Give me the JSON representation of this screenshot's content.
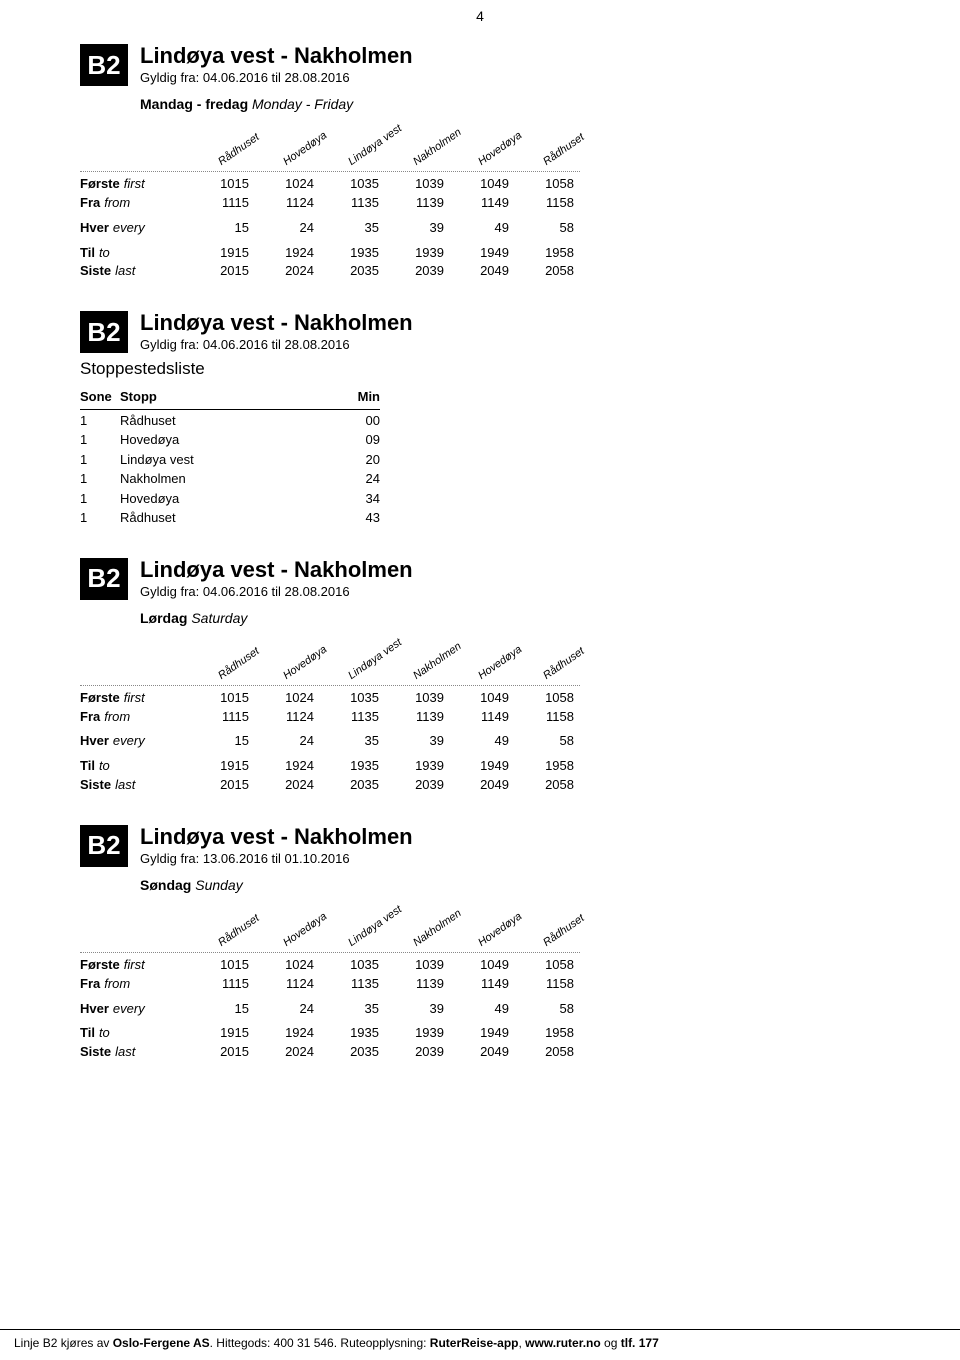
{
  "page_number": "4",
  "route_code": "B2",
  "stops_columns": [
    "Rådhuset",
    "Hovedøya",
    "Lindøya vest",
    "Nakholmen",
    "Hovedøya",
    "Rådhuset"
  ],
  "row_labels": {
    "forste": {
      "b": "Første",
      "i": "first"
    },
    "fra": {
      "b": "Fra",
      "i": "from"
    },
    "hver": {
      "b": "Hver",
      "i": "every"
    },
    "til": {
      "b": "Til",
      "i": "to"
    },
    "siste": {
      "b": "Siste",
      "i": "last"
    }
  },
  "sections": [
    {
      "title": "Lindøya vest - Nakholmen",
      "validity": "Gyldig fra: 04.06.2016 til 28.08.2016",
      "day_bold": "Mandag - fredag",
      "day_italic": "Monday - Friday",
      "has_table": true,
      "rows": {
        "forste": [
          "1015",
          "1024",
          "1035",
          "1039",
          "1049",
          "1058"
        ],
        "fra": [
          "1115",
          "1124",
          "1135",
          "1139",
          "1149",
          "1158"
        ],
        "hver": [
          "15",
          "24",
          "35",
          "39",
          "49",
          "58"
        ],
        "til": [
          "1915",
          "1924",
          "1935",
          "1939",
          "1949",
          "1958"
        ],
        "siste": [
          "2015",
          "2024",
          "2035",
          "2039",
          "2049",
          "2058"
        ]
      }
    },
    {
      "title": "Lindøya vest - Nakholmen",
      "validity": "Gyldig fra: 04.06.2016 til 28.08.2016",
      "has_stoplist": true,
      "stoplist_title": "Stoppestedsliste",
      "stoplist_headers": {
        "sone": "Sone",
        "stopp": "Stopp",
        "min": "Min"
      },
      "stoplist": [
        {
          "sone": "1",
          "stopp": "Rådhuset",
          "min": "00"
        },
        {
          "sone": "1",
          "stopp": "Hovedøya",
          "min": "09"
        },
        {
          "sone": "1",
          "stopp": "Lindøya vest",
          "min": "20"
        },
        {
          "sone": "1",
          "stopp": "Nakholmen",
          "min": "24"
        },
        {
          "sone": "1",
          "stopp": "Hovedøya",
          "min": "34"
        },
        {
          "sone": "1",
          "stopp": "Rådhuset",
          "min": "43"
        }
      ]
    },
    {
      "title": "Lindøya vest - Nakholmen",
      "validity": "Gyldig fra: 04.06.2016 til 28.08.2016",
      "day_bold": "Lørdag",
      "day_italic": "Saturday",
      "has_table": true,
      "rows": {
        "forste": [
          "1015",
          "1024",
          "1035",
          "1039",
          "1049",
          "1058"
        ],
        "fra": [
          "1115",
          "1124",
          "1135",
          "1139",
          "1149",
          "1158"
        ],
        "hver": [
          "15",
          "24",
          "35",
          "39",
          "49",
          "58"
        ],
        "til": [
          "1915",
          "1924",
          "1935",
          "1939",
          "1949",
          "1958"
        ],
        "siste": [
          "2015",
          "2024",
          "2035",
          "2039",
          "2049",
          "2058"
        ]
      }
    },
    {
      "title": "Lindøya vest - Nakholmen",
      "validity": "Gyldig fra: 13.06.2016 til 01.10.2016",
      "day_bold": "Søndag",
      "day_italic": "Sunday",
      "has_table": true,
      "rows": {
        "forste": [
          "1015",
          "1024",
          "1035",
          "1039",
          "1049",
          "1058"
        ],
        "fra": [
          "1115",
          "1124",
          "1135",
          "1139",
          "1149",
          "1158"
        ],
        "hver": [
          "15",
          "24",
          "35",
          "39",
          "49",
          "58"
        ],
        "til": [
          "1915",
          "1924",
          "1935",
          "1939",
          "1949",
          "1958"
        ],
        "siste": [
          "2015",
          "2024",
          "2035",
          "2039",
          "2049",
          "2058"
        ]
      }
    }
  ],
  "footer_parts": {
    "p1": "Linje B2 kjøres av ",
    "p2": "Oslo-Fergene AS",
    "p3": ". Hittegods: 400 31 546. Ruteopplysning: ",
    "p4": "RuterReise-app",
    "p5": ", ",
    "p6": "www.ruter.no",
    "p7": " og ",
    "p8": "tlf. 177"
  }
}
